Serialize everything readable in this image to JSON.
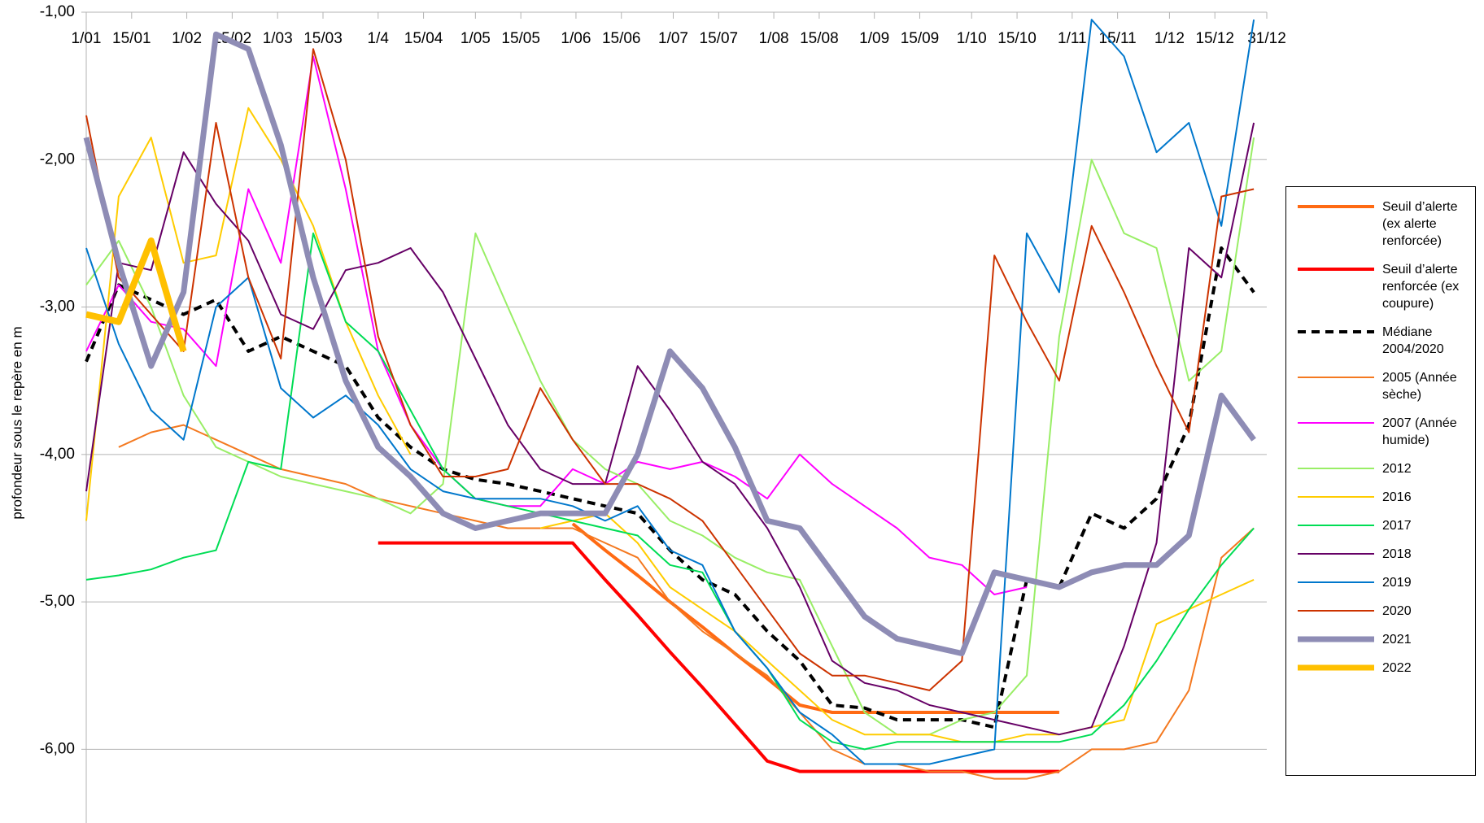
{
  "chart_data": {
    "type": "line",
    "y_label": "profondeur sous le repère en m",
    "xlim": [
      1,
      365
    ],
    "ylim": [
      -6.5,
      -1
    ],
    "grid": true,
    "legend": "right",
    "xticks": [
      {
        "value": 1,
        "label": "1/01"
      },
      {
        "value": 15,
        "label": "15/01"
      },
      {
        "value": 32,
        "label": "1/02"
      },
      {
        "value": 46,
        "label": "15/02"
      },
      {
        "value": 60,
        "label": "1/03"
      },
      {
        "value": 74,
        "label": "15/03"
      },
      {
        "value": 91,
        "label": "1/4"
      },
      {
        "value": 105,
        "label": "15/04"
      },
      {
        "value": 121,
        "label": "1/05"
      },
      {
        "value": 135,
        "label": "15/05"
      },
      {
        "value": 152,
        "label": "1/06"
      },
      {
        "value": 166,
        "label": "15/06"
      },
      {
        "value": 182,
        "label": "1/07"
      },
      {
        "value": 196,
        "label": "15/07"
      },
      {
        "value": 213,
        "label": "1/08"
      },
      {
        "value": 227,
        "label": "15/08"
      },
      {
        "value": 244,
        "label": "1/09"
      },
      {
        "value": 258,
        "label": "15/09"
      },
      {
        "value": 274,
        "label": "1/10"
      },
      {
        "value": 288,
        "label": "15/10"
      },
      {
        "value": 305,
        "label": "1/11"
      },
      {
        "value": 319,
        "label": "15/11"
      },
      {
        "value": 335,
        "label": "1/12"
      },
      {
        "value": 349,
        "label": "15/12"
      },
      {
        "value": 365,
        "label": "31/12"
      }
    ],
    "yticks": [
      {
        "value": -1,
        "label": "-1,00"
      },
      {
        "value": -2,
        "label": "-2,00"
      },
      {
        "value": -3,
        "label": "-3,00"
      },
      {
        "value": -4,
        "label": "-4,00"
      },
      {
        "value": -5,
        "label": "-5,00"
      },
      {
        "value": -6,
        "label": "-6,00"
      }
    ],
    "x": [
      1,
      11,
      21,
      31,
      41,
      51,
      61,
      71,
      81,
      91,
      101,
      111,
      121,
      131,
      141,
      151,
      161,
      171,
      181,
      191,
      201,
      211,
      221,
      231,
      241,
      251,
      261,
      271,
      281,
      291,
      301,
      311,
      321,
      331,
      341,
      351,
      361
    ],
    "series": [
      {
        "name": "Seuil d’alerte (ex alerte renforcée)",
        "color": "#ff6a13",
        "width": 4,
        "values": [
          null,
          null,
          null,
          null,
          null,
          null,
          null,
          null,
          null,
          null,
          null,
          null,
          null,
          null,
          null,
          -4.47,
          -4.65,
          -4.82,
          -5.0,
          -5.17,
          -5.35,
          -5.52,
          -5.7,
          -5.75,
          -5.75,
          -5.75,
          -5.75,
          -5.75,
          -5.75,
          -5.75,
          -5.75,
          null,
          null,
          null,
          null,
          null,
          null
        ]
      },
      {
        "name": "Seuil d’alerte renforcée (ex coupure)",
        "color": "#ff0000",
        "width": 4,
        "values": [
          null,
          null,
          null,
          null,
          null,
          null,
          null,
          null,
          null,
          -4.6,
          -4.6,
          -4.6,
          -4.6,
          -4.6,
          -4.6,
          -4.6,
          -4.85,
          -5.09,
          -5.34,
          -5.58,
          -5.83,
          -6.08,
          -6.15,
          -6.15,
          -6.15,
          -6.15,
          -6.15,
          -6.15,
          -6.15,
          -6.15,
          -6.15,
          null,
          null,
          null,
          null,
          null,
          null
        ]
      },
      {
        "name": "Médiane 2004/2020",
        "color": "#000000",
        "width": 4,
        "dash": true,
        "values": [
          -3.37,
          -2.85,
          -2.95,
          -3.05,
          -2.95,
          -3.3,
          -3.2,
          -3.3,
          -3.4,
          -3.75,
          -3.95,
          -4.1,
          -4.17,
          -4.2,
          -4.25,
          -4.3,
          -4.35,
          -4.4,
          -4.65,
          -4.85,
          -4.95,
          -5.2,
          -5.4,
          -5.7,
          -5.72,
          -5.8,
          -5.8,
          -5.8,
          -5.85,
          -4.85,
          -4.9,
          -4.4,
          -4.5,
          -4.3,
          -3.8,
          -2.6,
          -2.9
        ]
      },
      {
        "name": "2005 (Année sèche)",
        "color": "#f47920",
        "width": 2,
        "values": [
          null,
          -3.95,
          -3.85,
          -3.8,
          -3.9,
          -4.0,
          -4.1,
          -4.15,
          -4.2,
          -4.3,
          -4.35,
          -4.4,
          -4.45,
          -4.5,
          -4.5,
          -4.5,
          -4.6,
          -4.7,
          -5.0,
          -5.2,
          -5.35,
          -5.5,
          -5.75,
          -6.0,
          -6.1,
          -6.1,
          -6.15,
          -6.15,
          -6.2,
          -6.2,
          -6.15,
          -6.0,
          -6.0,
          -5.95,
          -5.6,
          -4.7,
          -4.5
        ]
      },
      {
        "name": "2007 (Année humide)",
        "color": "#ff00ff",
        "width": 2,
        "values": [
          -3.3,
          -2.85,
          -3.1,
          -3.15,
          -3.4,
          -2.2,
          -2.7,
          -1.3,
          -2.2,
          -3.3,
          -3.8,
          -4.1,
          -4.3,
          -4.35,
          -4.35,
          -4.1,
          -4.2,
          -4.05,
          -4.1,
          -4.05,
          -4.15,
          -4.3,
          -4.0,
          -4.2,
          -4.35,
          -4.5,
          -4.7,
          -4.75,
          -4.95,
          -4.9,
          null,
          null,
          null,
          null,
          null,
          null,
          null
        ]
      },
      {
        "name": "2012",
        "color": "#99ee66",
        "width": 2,
        "values": [
          -2.85,
          -2.55,
          -3.0,
          -3.6,
          -3.95,
          -4.05,
          -4.15,
          -4.2,
          -4.25,
          -4.3,
          -4.4,
          -4.2,
          -2.5,
          -3.0,
          -3.5,
          -3.9,
          -4.1,
          -4.2,
          -4.45,
          -4.55,
          -4.7,
          -4.8,
          -4.85,
          -5.3,
          -5.75,
          -5.9,
          -5.9,
          -5.8,
          -5.75,
          -5.5,
          -3.2,
          -2.0,
          -2.5,
          -2.6,
          -3.5,
          -3.3,
          -1.85
        ]
      },
      {
        "name": "2016",
        "color": "#ffcc00",
        "width": 2,
        "values": [
          -4.45,
          -2.25,
          -1.85,
          -2.7,
          -2.65,
          -1.65,
          -2.0,
          -2.45,
          -3.1,
          -3.6,
          -4.0,
          null,
          null,
          null,
          -4.5,
          -4.45,
          -4.4,
          -4.6,
          -4.9,
          -5.05,
          -5.2,
          -5.4,
          -5.6,
          -5.8,
          -5.9,
          -5.9,
          -5.9,
          -5.95,
          -5.95,
          -5.9,
          -5.9,
          -5.85,
          -5.8,
          -5.15,
          -5.05,
          -4.95,
          -4.85
        ]
      },
      {
        "name": "2017",
        "color": "#00dd55",
        "width": 2,
        "values": [
          -4.85,
          -4.82,
          -4.78,
          -4.7,
          -4.65,
          -4.05,
          -4.1,
          -2.5,
          -3.1,
          -3.3,
          -3.7,
          -4.1,
          -4.3,
          -4.35,
          -4.4,
          -4.45,
          -4.5,
          -4.55,
          -4.75,
          -4.8,
          -5.2,
          -5.45,
          -5.8,
          -5.95,
          -6.0,
          -5.95,
          -5.95,
          -5.95,
          -5.95,
          -5.95,
          -5.95,
          -5.9,
          -5.7,
          -5.4,
          -5.05,
          -4.75,
          -4.5
        ]
      },
      {
        "name": "2018",
        "color": "#660066",
        "width": 2,
        "values": [
          -4.25,
          -2.7,
          -2.75,
          -1.95,
          -2.3,
          -2.55,
          -3.05,
          -3.15,
          -2.75,
          -2.7,
          -2.6,
          -2.9,
          -3.35,
          -3.8,
          -4.1,
          -4.2,
          -4.2,
          -3.4,
          -3.7,
          -4.05,
          -4.2,
          -4.5,
          -4.9,
          -5.4,
          -5.55,
          -5.6,
          -5.7,
          -5.75,
          -5.8,
          -5.85,
          -5.9,
          -5.85,
          -5.3,
          -4.6,
          -2.6,
          -2.8,
          -1.75
        ]
      },
      {
        "name": "2019",
        "color": "#0077cc",
        "width": 2,
        "values": [
          -2.6,
          -3.25,
          -3.7,
          -3.9,
          -3.0,
          -2.8,
          -3.55,
          -3.75,
          -3.6,
          -3.8,
          -4.1,
          -4.25,
          -4.3,
          -4.3,
          -4.3,
          -4.35,
          -4.45,
          -4.35,
          -4.65,
          -4.75,
          -5.2,
          -5.45,
          -5.75,
          -5.9,
          -6.1,
          -6.1,
          -6.1,
          -6.05,
          -6.0,
          -2.5,
          -2.9,
          -1.05,
          -1.3,
          -1.95,
          -1.75,
          -2.45,
          -1.05
        ]
      },
      {
        "name": "2020",
        "color": "#cc3300",
        "width": 2,
        "values": [
          -1.7,
          -2.8,
          -3.05,
          -3.3,
          -1.75,
          -2.8,
          -3.35,
          -1.25,
          -2.0,
          -3.2,
          -3.8,
          -4.15,
          -4.15,
          -4.1,
          -3.55,
          -3.9,
          -4.2,
          -4.2,
          -4.3,
          -4.45,
          -4.75,
          -5.05,
          -5.35,
          -5.5,
          -5.5,
          -5.55,
          -5.6,
          -5.4,
          -2.65,
          -3.1,
          -3.5,
          -2.45,
          -2.9,
          -3.4,
          -3.85,
          -2.25,
          -2.2
        ]
      },
      {
        "name": "2021",
        "color": "#8e8cb5",
        "width": 7,
        "values": [
          -1.85,
          -2.7,
          -3.4,
          -2.9,
          -1.15,
          -1.25,
          -1.9,
          -2.8,
          -3.5,
          -3.95,
          -4.15,
          -4.4,
          -4.5,
          -4.45,
          -4.4,
          -4.4,
          -4.4,
          -4.0,
          -3.3,
          -3.55,
          -3.95,
          -4.45,
          -4.5,
          -4.8,
          -5.1,
          -5.25,
          -5.3,
          -5.35,
          -4.8,
          -4.85,
          -4.9,
          -4.8,
          -4.75,
          -4.75,
          -4.55,
          -3.6,
          -3.9
        ]
      },
      {
        "name": "2022",
        "color": "#ffc000",
        "width": 8,
        "values": [
          -3.05,
          -3.1,
          -2.55,
          -3.3,
          null,
          null,
          null,
          null,
          null,
          null,
          null,
          null,
          null,
          null,
          null,
          null,
          null,
          null,
          null,
          null,
          null,
          null,
          null,
          null,
          null,
          null,
          null,
          null,
          null,
          null,
          null,
          null,
          null,
          null,
          null,
          null,
          null
        ]
      }
    ]
  }
}
